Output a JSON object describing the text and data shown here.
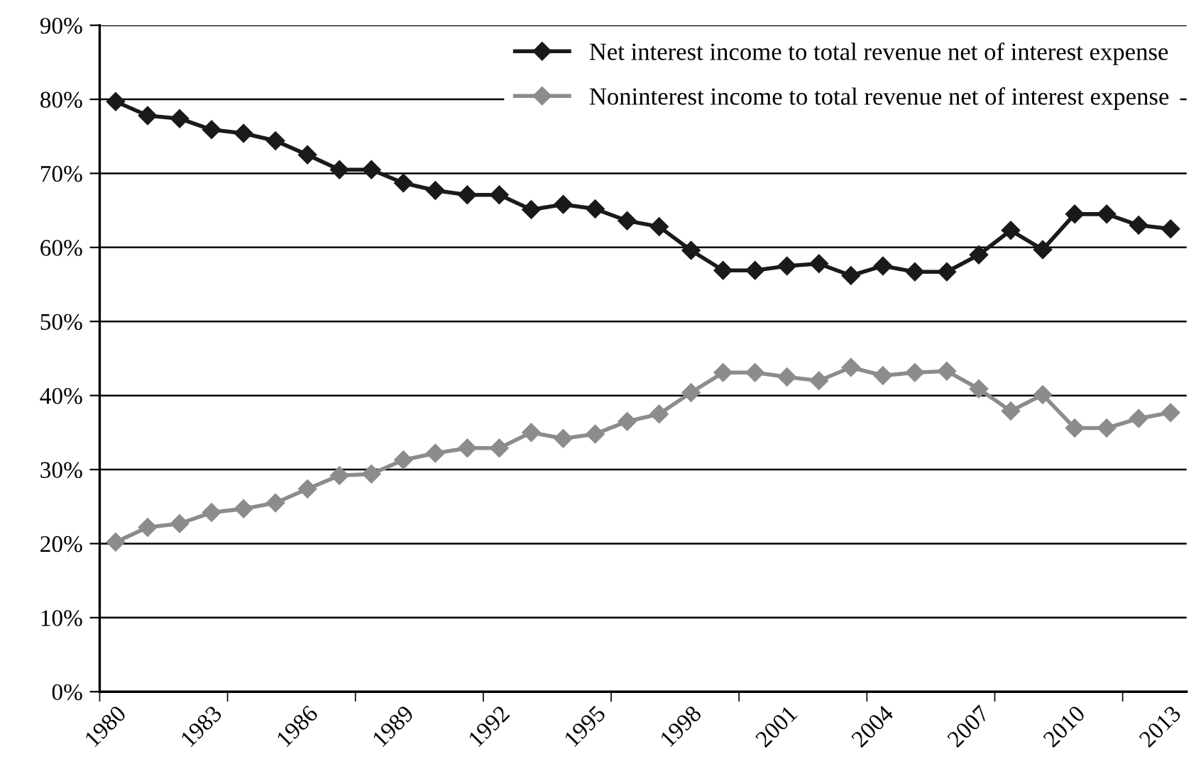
{
  "chart_data": {
    "type": "line",
    "categories": [
      "1980",
      null,
      null,
      "1983",
      null,
      null,
      "1986",
      null,
      null,
      "1989",
      null,
      null,
      "1992",
      null,
      null,
      "1995",
      null,
      null,
      "1998",
      null,
      null,
      "2001",
      null,
      null,
      "2004",
      null,
      null,
      "2007",
      null,
      null,
      "2010",
      null,
      null,
      "2013"
    ],
    "series": [
      {
        "name": "Net interest income to total revenue net of interest expense",
        "color": "#1a1a1a",
        "values": [
          79.7,
          77.8,
          77.4,
          75.9,
          75.4,
          74.4,
          72.5,
          70.5,
          70.5,
          68.7,
          67.7,
          67.1,
          67.1,
          65.1,
          65.8,
          65.2,
          63.6,
          62.8,
          59.6,
          56.9,
          56.9,
          57.5,
          57.8,
          56.2,
          57.5,
          56.7,
          56.7,
          59.0,
          62.3,
          59.7,
          64.5,
          64.5,
          63.0,
          62.5
        ]
      },
      {
        "name": "Noninterest income to total revenue net of interest expense",
        "color": "#8c8c8c",
        "values": [
          20.2,
          22.2,
          22.7,
          24.2,
          24.7,
          25.5,
          27.4,
          29.2,
          29.4,
          31.3,
          32.2,
          32.9,
          32.9,
          35.0,
          34.2,
          34.8,
          36.5,
          37.5,
          40.4,
          43.1,
          43.1,
          42.5,
          42.0,
          43.8,
          42.7,
          43.1,
          43.3,
          40.9,
          37.9,
          40.1,
          35.6,
          35.6,
          36.9,
          37.7
        ]
      }
    ],
    "ylim": [
      0,
      90
    ],
    "yticks": [
      {
        "value": 0,
        "label": "0%"
      },
      {
        "value": 10,
        "label": "10%"
      },
      {
        "value": 20,
        "label": "20%"
      },
      {
        "value": 30,
        "label": "30%"
      },
      {
        "value": 40,
        "label": "40%"
      },
      {
        "value": 50,
        "label": "50%"
      },
      {
        "value": 60,
        "label": "60%"
      },
      {
        "value": 70,
        "label": "70%"
      },
      {
        "value": 80,
        "label": "80%"
      },
      {
        "value": 90,
        "label": "90%"
      }
    ],
    "grid": "y",
    "legend": "top right",
    "marker": "diamond",
    "line_style": "solid"
  }
}
